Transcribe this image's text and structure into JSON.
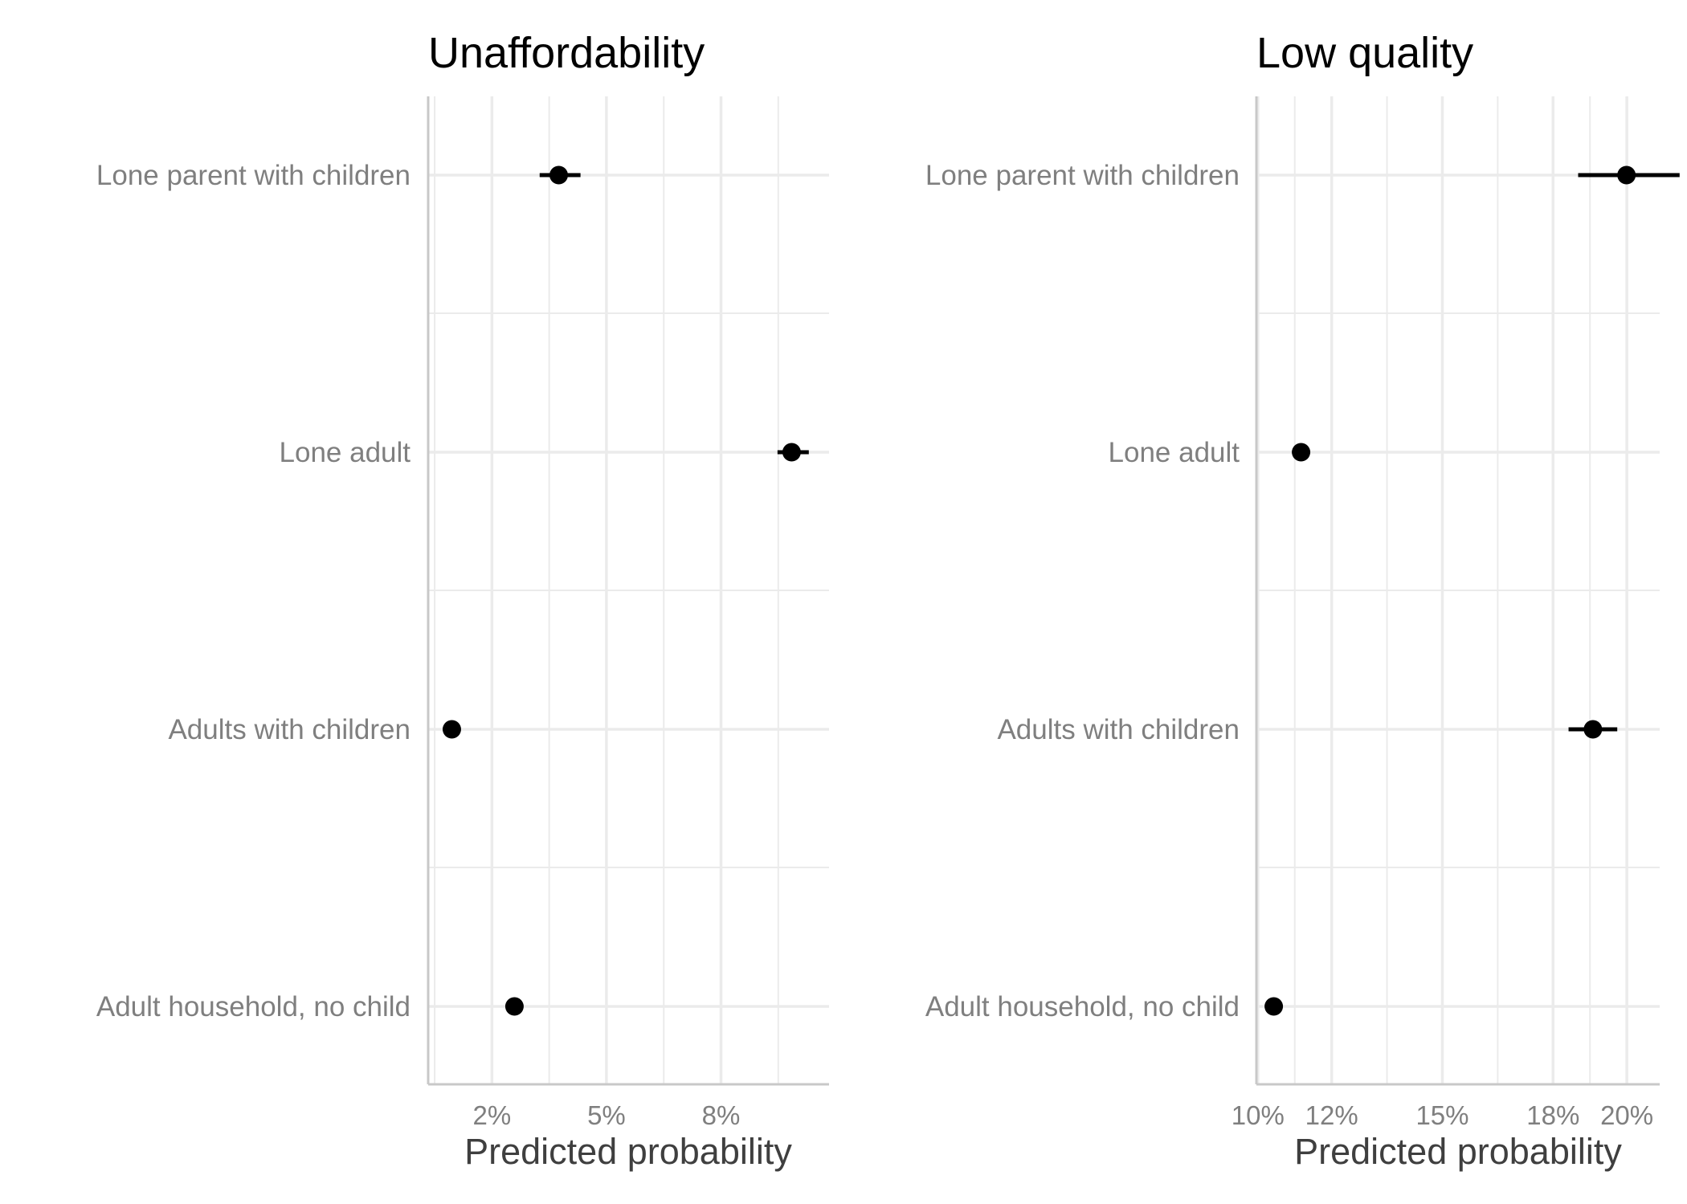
{
  "colors": {
    "grid": "#ebebeb",
    "axis_line": "#c8c8c8",
    "point": "#000000",
    "label": "#7f7f7f",
    "axis_title": "#3f3f3f"
  },
  "chart_data": [
    {
      "type": "scatter",
      "title": "Unaffordability",
      "xlabel": "Predicted probability",
      "ylabel": "",
      "categories": [
        "Lone parent with children",
        "Lone adult",
        "Adults with children",
        "Adult household, no child"
      ],
      "x_ticks": [
        0.02,
        0.05,
        0.08
      ],
      "x_tick_labels": [
        "2%",
        "5%",
        "8%"
      ],
      "xlim": [
        0.0033,
        0.1083
      ],
      "grid": true,
      "series": [
        {
          "values": [
            0.0375,
            0.0985,
            0.0095,
            0.0259
          ],
          "ci_low": [
            0.0325,
            0.0948,
            0.0095,
            0.0259
          ],
          "ci_high": [
            0.0432,
            0.103,
            0.0095,
            0.0259
          ]
        }
      ]
    },
    {
      "type": "scatter",
      "title": "Low quality",
      "xlabel": "Predicted probability",
      "ylabel": "",
      "categories": [
        "Lone parent with children",
        "Lone adult",
        "Adults with children",
        "Adult household, no child"
      ],
      "x_ticks": [
        0.1,
        0.12,
        0.15,
        0.18,
        0.2
      ],
      "x_tick_labels": [
        "10%",
        "12%",
        "15%",
        "18%",
        "20%"
      ],
      "xlim": [
        0.0996,
        0.2089
      ],
      "grid": true,
      "series": [
        {
          "values": [
            0.1999,
            0.1117,
            0.1908,
            0.1043
          ],
          "ci_low": [
            0.1868,
            0.1097,
            0.1842,
            0.1043
          ],
          "ci_high": [
            0.2143,
            0.114,
            0.1974,
            0.1043
          ]
        }
      ]
    }
  ]
}
